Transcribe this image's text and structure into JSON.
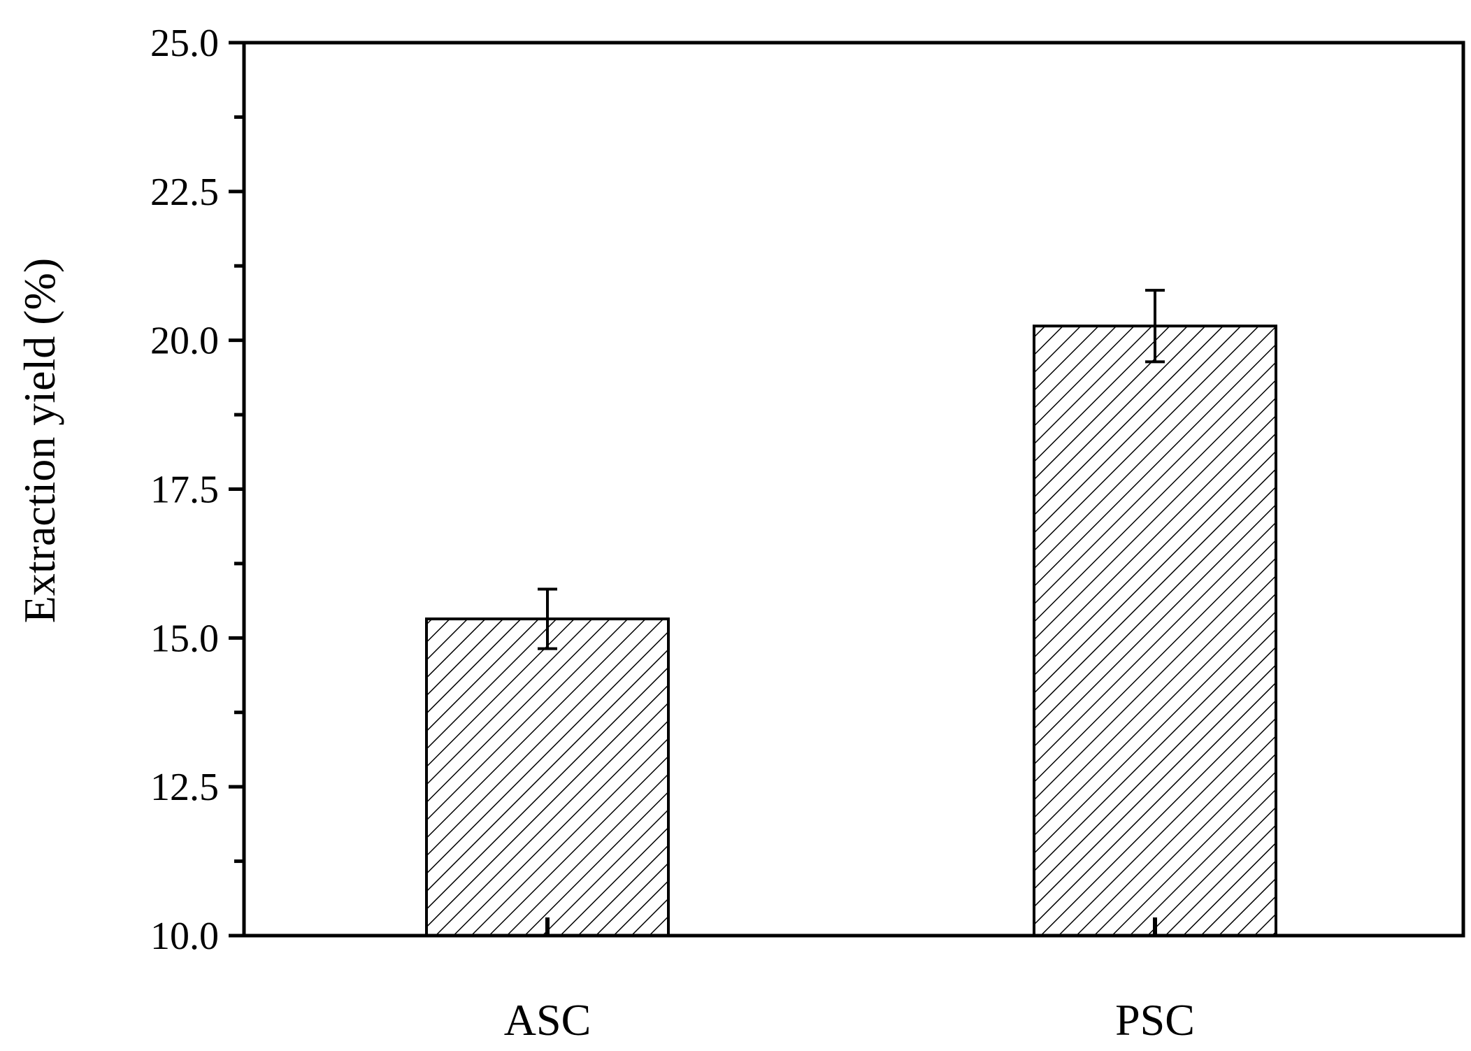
{
  "chart_data": {
    "type": "bar",
    "categories": [
      "ASC",
      "PSC"
    ],
    "values": [
      15.32,
      20.24
    ],
    "errors": [
      0.5,
      0.6
    ],
    "xlabel": "",
    "ylabel": "Extraction yield (%)",
    "ylim": [
      10.0,
      25.0
    ],
    "yticks": [
      10.0,
      12.5,
      15.0,
      17.5,
      20.0,
      22.5,
      25.0
    ],
    "ytick_labels": [
      "10.0",
      "12.5",
      "15.0",
      "17.5",
      "20.0",
      "22.5",
      "25.0"
    ],
    "grid": false,
    "bar_fill": "hatched",
    "colors": {
      "axis": "#000000",
      "bar_edge": "#000000",
      "hatch": "#000000",
      "background": "#ffffff"
    }
  }
}
